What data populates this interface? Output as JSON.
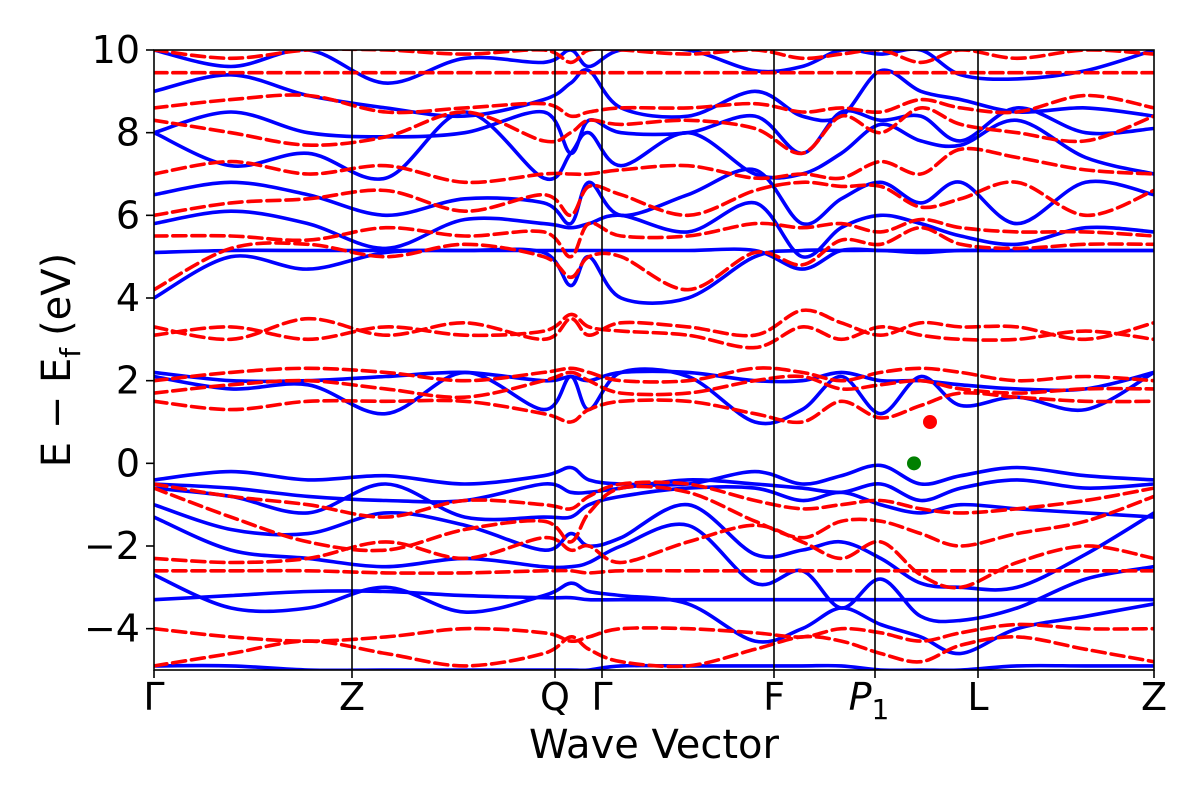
{
  "chart_data": {
    "type": "line",
    "title": "",
    "xlabel": "Wave Vector",
    "ylabel": "E − E_f (eV)",
    "ylabel_parts": {
      "main": "E − E",
      "sub": "f",
      "unit": "(eV)"
    },
    "ylim": [
      -5,
      10
    ],
    "yticks": [
      -4,
      -2,
      0,
      2,
      4,
      6,
      8,
      10
    ],
    "ytick_labels": [
      "−4",
      "−2",
      "0",
      "2",
      "4",
      "6",
      "8",
      "10"
    ],
    "xlim": [
      0,
      1
    ],
    "kpoints": [
      {
        "label": "Γ",
        "x": 0.0
      },
      {
        "label": "Z",
        "x": 0.198
      },
      {
        "label": "Q",
        "x": 0.401
      },
      {
        "label": "Γ",
        "x": 0.448
      },
      {
        "label": "F",
        "x": 0.62
      },
      {
        "label": "P",
        "sub": "1",
        "x": 0.721
      },
      {
        "label": "L",
        "x": 0.824
      },
      {
        "label": "Z",
        "x": 1.0
      }
    ],
    "grid": false,
    "legend": "none",
    "series": [
      {
        "style": "solid",
        "color": "#0000ff",
        "bands": [
          [
            -4.9,
            -4.9,
            -5,
            -5,
            -5,
            -5,
            -5,
            -5,
            -4.9,
            -4.9,
            -4.9,
            -4.9,
            -4.9,
            -5,
            -5,
            -5,
            -4.9,
            -4.9,
            -4.9
          ],
          [
            -3.3,
            -3.2,
            -3.1,
            -3.1,
            -3.2,
            -3.25,
            -3.25,
            -3.3,
            -3.3,
            -3.3,
            -3.3,
            -3.3,
            -3.3,
            -3.3,
            -3.3,
            -3.3,
            -3.3,
            -3.3,
            -3.3
          ],
          [
            -2.7,
            -3.5,
            -3.5,
            -3.0,
            -3.6,
            -3.2,
            -2.9,
            -3.1,
            -3.2,
            -3.4,
            -4.3,
            -4.0,
            -3.5,
            -3.9,
            -4.2,
            -4.6,
            -4.0,
            -3.7,
            -3.4
          ],
          [
            -1.3,
            -2.1,
            -2.3,
            -2.5,
            -2.3,
            -2.5,
            -2.5,
            -2.4,
            -2.0,
            -1.5,
            -2.9,
            -2.6,
            -3.5,
            -2.8,
            -3.7,
            -3.8,
            -3.5,
            -2.8,
            -2.5
          ],
          [
            -1.0,
            -1.6,
            -1.7,
            -1.2,
            -1.5,
            -2.1,
            -1.7,
            -2.0,
            -1.8,
            -1.0,
            -2.2,
            -2.1,
            -1.9,
            -2.3,
            -2.9,
            -3.0,
            -3.0,
            -2.2,
            -1.2
          ],
          [
            -0.6,
            -0.8,
            -1.2,
            -0.5,
            -1.3,
            -1.3,
            -1.3,
            -1.0,
            -0.8,
            -0.6,
            -0.6,
            -0.9,
            -0.7,
            -1.0,
            -1.2,
            -1.0,
            -1.1,
            -1.2,
            -1.3
          ],
          [
            -0.5,
            -0.6,
            -0.8,
            -0.9,
            -0.9,
            -0.5,
            -0.7,
            -0.7,
            -0.6,
            -0.4,
            -0.5,
            -0.6,
            -0.7,
            -0.5,
            -0.9,
            -0.6,
            -0.4,
            -0.6,
            -0.5
          ],
          [
            -0.4,
            -0.2,
            -0.4,
            -0.3,
            -0.5,
            -0.3,
            -0.1,
            -0.4,
            -0.5,
            -0.5,
            -0.2,
            -0.5,
            -0.3,
            -0.05,
            -0.5,
            -0.3,
            -0.1,
            -0.3,
            -0.4
          ],
          [
            2.1,
            1.8,
            1.9,
            1.2,
            2.2,
            1.3,
            2.1,
            1.3,
            2.2,
            2.1,
            1.0,
            1.3,
            2.1,
            1.2,
            2.1,
            1.4,
            1.6,
            1.3,
            2.2
          ],
          [
            2.2,
            2.0,
            2.0,
            2.1,
            2.2,
            2.0,
            2.1,
            2.0,
            2.2,
            2.2,
            2.0,
            2.0,
            2.2,
            2.0,
            2.0,
            1.9,
            1.8,
            1.8,
            2.2
          ],
          [
            4.0,
            5.0,
            4.7,
            5.1,
            5.15,
            5.1,
            4.3,
            5.0,
            4.0,
            4.0,
            5.0,
            5.15,
            5.15,
            5.15,
            5.1,
            5.15,
            5.15,
            5.15,
            5.15
          ],
          [
            5.1,
            5.15,
            5.15,
            5.15,
            5.15,
            5.15,
            5.15,
            5.15,
            5.15,
            5.15,
            5.15,
            4.7,
            5.15,
            5.15,
            5.15,
            5.15,
            5.15,
            5.15,
            5.15
          ],
          [
            5.8,
            6.1,
            5.8,
            5.2,
            5.9,
            5.8,
            5.7,
            5.8,
            6.0,
            5.6,
            6.3,
            5.0,
            5.7,
            6.0,
            5.8,
            5.5,
            5.3,
            5.7,
            5.6
          ],
          [
            6.5,
            6.8,
            6.5,
            6.0,
            6.4,
            6.3,
            5.8,
            6.8,
            6.0,
            6.5,
            7.1,
            5.8,
            6.4,
            6.8,
            6.3,
            6.8,
            5.8,
            6.8,
            6.5
          ],
          [
            8.0,
            7.2,
            7.5,
            6.9,
            8.5,
            6.9,
            7.5,
            8.0,
            7.2,
            8.0,
            7.0,
            7.0,
            7.5,
            8.2,
            7.8,
            7.7,
            8.3,
            7.4,
            7.0
          ],
          [
            8.0,
            8.5,
            8.0,
            7.9,
            8.0,
            8.5,
            7.5,
            8.3,
            8.0,
            8.0,
            8.4,
            7.5,
            8.5,
            8.3,
            8.4,
            7.8,
            8.6,
            8.0,
            8.1
          ],
          [
            9.0,
            9.4,
            8.9,
            8.6,
            8.4,
            8.8,
            9.2,
            9.5,
            8.6,
            8.4,
            9.0,
            8.4,
            8.4,
            9.5,
            9.0,
            8.8,
            8.5,
            8.6,
            8.4
          ],
          [
            10.0,
            9.6,
            10.0,
            9.2,
            9.8,
            9.7,
            10.0,
            9.6,
            10.0,
            10.0,
            9.5,
            9.6,
            10.0,
            9.9,
            10.0,
            9.4,
            9.3,
            9.5,
            10.0
          ]
        ]
      },
      {
        "style": "dashed",
        "color": "#ff0000",
        "bands": [
          [
            -4.9,
            -4.6,
            -4.3,
            -4.6,
            -4.9,
            -4.6,
            -4.2,
            -4.5,
            -4.8,
            -4.9,
            -4.5,
            -4.2,
            -4.3,
            -4.6,
            -4.8,
            -4.4,
            -4.2,
            -4.5,
            -4.8
          ],
          [
            -4.0,
            -4.2,
            -4.3,
            -4.2,
            -4.0,
            -4.1,
            -4.3,
            -4.2,
            -4.0,
            -4.0,
            -4.1,
            -4.2,
            -4.0,
            -4.1,
            -4.3,
            -4.1,
            -3.9,
            -4.0,
            -4.0
          ],
          [
            -2.6,
            -2.6,
            -2.6,
            -2.65,
            -2.65,
            -2.6,
            -2.6,
            -2.65,
            -2.6,
            -2.6,
            -2.6,
            -2.6,
            -2.6,
            -2.6,
            -2.6,
            -2.6,
            -2.6,
            -2.6,
            -2.6
          ],
          [
            -2.3,
            -2.4,
            -2.3,
            -1.9,
            -2.3,
            -1.8,
            -2.1,
            -2.0,
            -2.4,
            -1.9,
            -1.5,
            -1.9,
            -2.3,
            -1.9,
            -2.7,
            -3.0,
            -2.4,
            -2.0,
            -2.3
          ],
          [
            -0.6,
            -1.3,
            -1.9,
            -2.1,
            -1.6,
            -1.4,
            -1.9,
            -1.2,
            -0.6,
            -0.7,
            -1.4,
            -1.8,
            -1.4,
            -1.4,
            -1.7,
            -2.0,
            -1.7,
            -1.4,
            -0.8
          ],
          [
            -0.5,
            -0.8,
            -1.0,
            -1.3,
            -0.9,
            -1.0,
            -1.1,
            -0.8,
            -0.5,
            -0.5,
            -0.9,
            -1.1,
            -1.0,
            -0.9,
            -1.1,
            -1.2,
            -1.1,
            -0.9,
            -0.6
          ],
          [
            1.5,
            1.3,
            1.5,
            1.5,
            1.5,
            1.2,
            1.0,
            1.3,
            1.5,
            1.5,
            1.2,
            1.0,
            1.5,
            1.1,
            1.4,
            1.7,
            1.6,
            1.5,
            1.5
          ],
          [
            1.7,
            1.9,
            2.0,
            1.8,
            1.6,
            2.0,
            2.2,
            2.0,
            1.7,
            1.7,
            2.0,
            2.1,
            1.8,
            1.9,
            2.0,
            1.8,
            1.7,
            1.8,
            1.8
          ],
          [
            2.0,
            2.2,
            2.3,
            2.2,
            2.0,
            2.2,
            2.3,
            2.2,
            2.0,
            2.0,
            2.3,
            2.2,
            2.0,
            2.2,
            2.3,
            2.2,
            2.0,
            2.1,
            2.0
          ],
          [
            3.1,
            3.3,
            3.0,
            3.3,
            3.1,
            3.2,
            3.6,
            3.3,
            3.2,
            3.1,
            2.8,
            3.3,
            3.0,
            3.3,
            3.1,
            3.0,
            3.0,
            3.2,
            3.0
          ],
          [
            3.3,
            3.0,
            3.5,
            3.1,
            3.4,
            3.0,
            3.5,
            3.1,
            3.4,
            3.3,
            3.1,
            3.7,
            3.4,
            3.1,
            3.4,
            3.3,
            3.3,
            3.0,
            3.4
          ],
          [
            4.2,
            5.2,
            5.3,
            5.0,
            5.3,
            5.0,
            4.5,
            5.0,
            5.0,
            4.2,
            5.1,
            4.8,
            5.4,
            5.3,
            5.7,
            5.3,
            5.2,
            5.3,
            5.3
          ],
          [
            5.5,
            5.5,
            5.4,
            5.7,
            5.5,
            5.6,
            5.0,
            5.8,
            5.5,
            5.5,
            5.8,
            5.7,
            5.8,
            5.6,
            5.9,
            5.7,
            5.6,
            5.6,
            5.5
          ],
          [
            6.0,
            6.3,
            6.4,
            6.6,
            6.1,
            6.5,
            6.0,
            6.7,
            6.5,
            6.0,
            6.6,
            6.8,
            6.7,
            6.7,
            6.2,
            6.4,
            6.8,
            6.0,
            6.6
          ],
          [
            7.0,
            7.3,
            7.0,
            7.2,
            6.8,
            7.0,
            7.0,
            7.0,
            7.1,
            7.2,
            6.9,
            7.0,
            6.9,
            7.3,
            7.0,
            7.6,
            7.4,
            7.1,
            7.0
          ],
          [
            8.3,
            8.0,
            7.7,
            7.9,
            8.5,
            7.8,
            8.0,
            8.3,
            8.2,
            8.3,
            8.1,
            7.5,
            8.4,
            8.0,
            8.6,
            8.2,
            8.0,
            7.8,
            8.4
          ],
          [
            8.6,
            8.8,
            8.9,
            8.5,
            8.6,
            8.7,
            8.4,
            8.5,
            8.6,
            8.6,
            8.7,
            8.5,
            8.6,
            8.5,
            8.8,
            8.6,
            8.5,
            8.9,
            8.6
          ],
          [
            9.45,
            9.45,
            9.45,
            9.45,
            9.45,
            9.45,
            9.45,
            9.45,
            9.45,
            9.45,
            9.45,
            9.45,
            9.45,
            9.45,
            9.45,
            9.45,
            9.45,
            9.45,
            9.45
          ],
          [
            10.0,
            9.8,
            10.0,
            10.0,
            9.9,
            10.0,
            9.7,
            10.0,
            10.0,
            9.9,
            10.0,
            9.8,
            9.9,
            10.0,
            9.7,
            10.0,
            9.8,
            10.0,
            9.9
          ]
        ]
      }
    ],
    "markers": [
      {
        "name": "valence-band-maximum",
        "x": 0.76,
        "y": 0.0,
        "color": "#008000"
      },
      {
        "name": "conduction-band-minimum",
        "x": 0.776,
        "y": 1.0,
        "color": "#ff0000"
      }
    ]
  }
}
